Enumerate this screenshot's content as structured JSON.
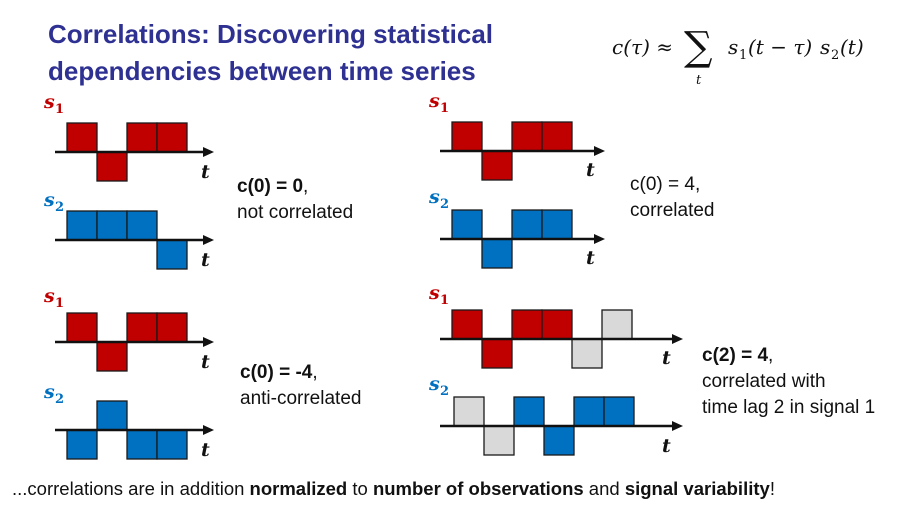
{
  "title": {
    "line1": "Correlations: Discovering statistical",
    "line2": "dependencies between time series"
  },
  "formula": {
    "lhs": "c(τ) ≈",
    "sum_symbol": "∑",
    "sum_index": "t",
    "rhs_s1": "s",
    "rhs_s1_sub": "1",
    "rhs_s1_arg": "(t − τ)",
    "rhs_s2": "s",
    "rhs_s2_sub": "2",
    "rhs_s2_arg": "(t)"
  },
  "labels": {
    "signal_base": "s",
    "sub1": "1",
    "sub2": "2",
    "time_axis": "t"
  },
  "colors": {
    "title": "#2e3192",
    "s1_fill": "#c00000",
    "s2_fill": "#0070c0",
    "shifted_fill": "#d9d9d9",
    "s1_label": "#c00000",
    "s2_label": "#0070c0"
  },
  "panels": [
    {
      "id": "not-correlated",
      "s1": [
        1,
        -1,
        1,
        1
      ],
      "s2": [
        1,
        1,
        1,
        -1
      ],
      "annotation": {
        "bold": "c(0) = 0",
        "comma": ",",
        "line2": "not correlated"
      }
    },
    {
      "id": "correlated",
      "s1": [
        1,
        -1,
        1,
        1
      ],
      "s2": [
        1,
        -1,
        1,
        1
      ],
      "annotation": {
        "bold": "",
        "comma": "",
        "line1": "c(0) = 4,",
        "line2": "correlated"
      }
    },
    {
      "id": "anti-correlated",
      "s1": [
        1,
        -1,
        1,
        1
      ],
      "s2": [
        -1,
        1,
        -1,
        -1
      ],
      "annotation": {
        "bold": "c(0) = -4",
        "comma": ",",
        "line2": "anti-correlated"
      }
    },
    {
      "id": "time-lag",
      "s1": [
        1,
        -1,
        1,
        1,
        -1,
        1
      ],
      "s1_shifted_from": 4,
      "s2": [
        1,
        -1,
        1,
        -1,
        1,
        1
      ],
      "s2_shifted_until": 2,
      "annotation": {
        "bold": "c(2) = 4",
        "comma": ",",
        "line2": "correlated with",
        "line3": "time lag 2 in signal 1"
      }
    }
  ],
  "footer": {
    "p1": "...correlations are in addition ",
    "b1": "normalized",
    "p2": " to ",
    "b2": "number of observations",
    "p3": " and ",
    "b3": "signal variability",
    "p4": "!"
  }
}
